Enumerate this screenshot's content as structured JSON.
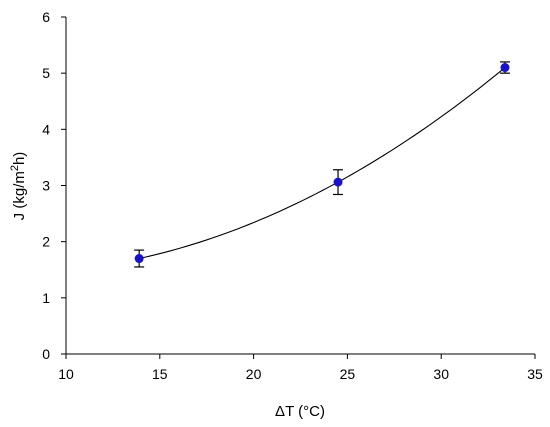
{
  "chart_data": {
    "type": "scatter",
    "title": "",
    "xlabel_delta": "Δ",
    "xlabel_rest": "T (°C)",
    "ylabel_main": "J (kg/m",
    "ylabel_sup": "2",
    "ylabel_end": "h)",
    "xlim": [
      10,
      35
    ],
    "ylim": [
      0,
      6
    ],
    "xticks": [
      10,
      15,
      20,
      25,
      30,
      35
    ],
    "yticks": [
      0,
      1,
      2,
      3,
      4,
      5,
      6
    ],
    "grid": false,
    "legend": "none",
    "series": [
      {
        "points": [
          {
            "x": 13.9,
            "y": 1.7,
            "err": 0.15
          },
          {
            "x": 24.5,
            "y": 3.06,
            "err": 0.22
          },
          {
            "x": 33.4,
            "y": 5.1,
            "err": 0.1
          }
        ],
        "marker_color": "#1a12c8",
        "fit": "smooth curve through points"
      }
    ]
  }
}
